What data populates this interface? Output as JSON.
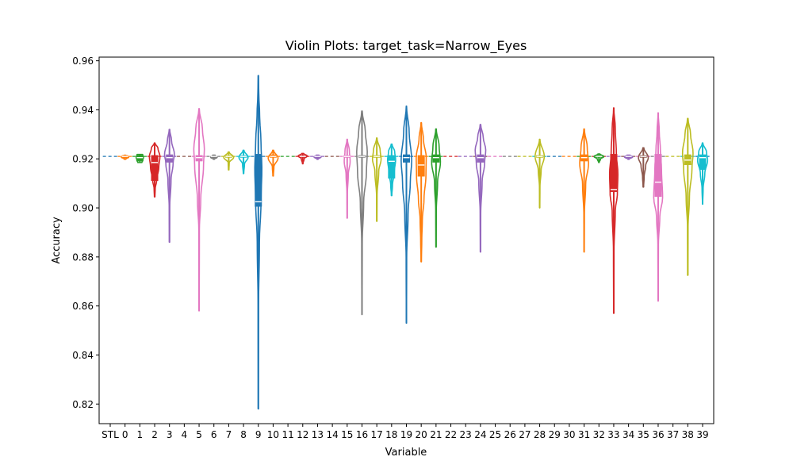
{
  "chart_data": {
    "type": "violin",
    "title": "Violin Plots: target_task=Narrow_Eyes",
    "xlabel": "Variable",
    "ylabel": "Accuracy",
    "ylim": [
      0.812,
      0.9615
    ],
    "yticks": [
      0.82,
      0.84,
      0.86,
      0.88,
      0.9,
      0.92,
      0.94,
      0.96
    ],
    "grid": false,
    "categories": [
      "STL",
      "0",
      "1",
      "2",
      "3",
      "4",
      "5",
      "6",
      "7",
      "8",
      "9",
      "10",
      "11",
      "12",
      "13",
      "14",
      "15",
      "16",
      "17",
      "18",
      "19",
      "20",
      "21",
      "22",
      "23",
      "24",
      "25",
      "26",
      "27",
      "28",
      "29",
      "30",
      "31",
      "32",
      "33",
      "34",
      "35",
      "36",
      "37",
      "38",
      "39"
    ],
    "colors": [
      "#1f77b4",
      "#ff7f0e",
      "#2ca02c",
      "#d62728",
      "#9467bd",
      "#8c564b",
      "#e377c2",
      "#7f7f7f",
      "#bcbd22",
      "#17becf"
    ],
    "series": [
      {
        "cat": "STL",
        "ci": 0,
        "min": 0.921,
        "max": 0.921,
        "q1": 0.921,
        "med": 0.921,
        "q3": 0.921,
        "w": 0
      },
      {
        "cat": "0",
        "ci": 1,
        "min": 0.9198,
        "max": 0.9215,
        "q1": 0.9205,
        "med": 0.921,
        "q3": 0.9212,
        "w": 0.55,
        "s": [
          [
            0,
            0.15
          ],
          [
            0.15,
            0.3
          ],
          [
            0.5,
            0.9
          ],
          [
            0.8,
            0.7
          ],
          [
            1,
            0.1
          ]
        ]
      },
      {
        "cat": "1",
        "ci": 2,
        "min": 0.9185,
        "max": 0.9218,
        "q1": 0.919,
        "med": 0.9205,
        "q3": 0.9215,
        "w": 0.55,
        "s": [
          [
            0,
            0.5
          ],
          [
            0.3,
            0.7
          ],
          [
            0.6,
            0.9
          ],
          [
            1,
            0.7
          ]
        ]
      },
      {
        "cat": "2",
        "ci": 3,
        "min": 0.9045,
        "max": 0.9265,
        "q1": 0.911,
        "med": 0.9185,
        "q3": 0.9215,
        "w": 0.75,
        "s": [
          [
            0,
            0.05
          ],
          [
            0.15,
            0.1
          ],
          [
            0.3,
            0.35
          ],
          [
            0.55,
            0.75
          ],
          [
            0.75,
            0.95
          ],
          [
            0.9,
            0.6
          ],
          [
            1,
            0.05
          ]
        ]
      },
      {
        "cat": "3",
        "ci": 4,
        "min": 0.886,
        "max": 0.932,
        "q1": 0.9185,
        "med": 0.9205,
        "q3": 0.9218,
        "w": 0.7,
        "s": [
          [
            0,
            0.02
          ],
          [
            0.3,
            0.05
          ],
          [
            0.55,
            0.3
          ],
          [
            0.7,
            0.7
          ],
          [
            0.78,
            0.95
          ],
          [
            0.9,
            0.4
          ],
          [
            1,
            0.05
          ]
        ]
      },
      {
        "cat": "4",
        "ci": 5,
        "min": 0.921,
        "max": 0.921,
        "q1": 0.921,
        "med": 0.921,
        "q3": 0.921,
        "w": 0
      },
      {
        "cat": "5",
        "ci": 6,
        "min": 0.858,
        "max": 0.9405,
        "q1": 0.919,
        "med": 0.9205,
        "q3": 0.9215,
        "w": 0.75,
        "s": [
          [
            0,
            0.02
          ],
          [
            0.4,
            0.05
          ],
          [
            0.55,
            0.3
          ],
          [
            0.72,
            0.8
          ],
          [
            0.8,
            0.95
          ],
          [
            0.9,
            0.6
          ],
          [
            1,
            0.03
          ]
        ]
      },
      {
        "cat": "6",
        "ci": 7,
        "min": 0.9198,
        "max": 0.9215,
        "q1": 0.9205,
        "med": 0.921,
        "q3": 0.9212,
        "w": 0.55,
        "s": [
          [
            0,
            0.1
          ],
          [
            0.5,
            0.8
          ],
          [
            1,
            0.3
          ]
        ]
      },
      {
        "cat": "7",
        "ci": 8,
        "min": 0.9155,
        "max": 0.9228,
        "q1": 0.9205,
        "med": 0.921,
        "q3": 0.9215,
        "w": 0.7,
        "s": [
          [
            0,
            0.05
          ],
          [
            0.4,
            0.1
          ],
          [
            0.7,
            0.95
          ],
          [
            1,
            0.1
          ]
        ]
      },
      {
        "cat": "8",
        "ci": 9,
        "min": 0.914,
        "max": 0.9235,
        "q1": 0.9205,
        "med": 0.921,
        "q3": 0.9215,
        "w": 0.65,
        "s": [
          [
            0,
            0.05
          ],
          [
            0.4,
            0.2
          ],
          [
            0.7,
            0.95
          ],
          [
            1,
            0.1
          ]
        ]
      },
      {
        "cat": "9",
        "ci": 0,
        "min": 0.818,
        "max": 0.954,
        "q1": 0.9005,
        "med": 0.9025,
        "q3": 0.922,
        "w": 0.6,
        "s": [
          [
            0,
            0.02
          ],
          [
            0.3,
            0.05
          ],
          [
            0.5,
            0.25
          ],
          [
            0.62,
            0.6
          ],
          [
            0.72,
            0.8
          ],
          [
            0.8,
            0.6
          ],
          [
            0.88,
            0.3
          ],
          [
            0.95,
            0.1
          ],
          [
            1,
            0.02
          ]
        ]
      },
      {
        "cat": "10",
        "ci": 1,
        "min": 0.913,
        "max": 0.9235,
        "q1": 0.9205,
        "med": 0.921,
        "q3": 0.9218,
        "w": 0.7,
        "s": [
          [
            0,
            0.05
          ],
          [
            0.35,
            0.15
          ],
          [
            0.7,
            0.95
          ],
          [
            1,
            0.1
          ]
        ]
      },
      {
        "cat": "11",
        "ci": 2,
        "min": 0.921,
        "max": 0.921,
        "q1": 0.921,
        "med": 0.921,
        "q3": 0.921,
        "w": 0
      },
      {
        "cat": "12",
        "ci": 3,
        "min": 0.918,
        "max": 0.9222,
        "q1": 0.9205,
        "med": 0.921,
        "q3": 0.9215,
        "w": 0.65,
        "s": [
          [
            0,
            0.05
          ],
          [
            0.5,
            0.3
          ],
          [
            0.75,
            0.95
          ],
          [
            1,
            0.2
          ]
        ]
      },
      {
        "cat": "13",
        "ci": 4,
        "min": 0.9198,
        "max": 0.9215,
        "q1": 0.9205,
        "med": 0.921,
        "q3": 0.9212,
        "w": 0.6,
        "s": [
          [
            0,
            0.1
          ],
          [
            0.6,
            0.8
          ],
          [
            1,
            0.3
          ]
        ]
      },
      {
        "cat": "14",
        "ci": 5,
        "min": 0.921,
        "max": 0.921,
        "q1": 0.921,
        "med": 0.921,
        "q3": 0.921,
        "w": 0
      },
      {
        "cat": "15",
        "ci": 6,
        "min": 0.8958,
        "max": 0.928,
        "q1": 0.9205,
        "med": 0.921,
        "q3": 0.9215,
        "w": 0.5,
        "s": [
          [
            0,
            0.02
          ],
          [
            0.3,
            0.05
          ],
          [
            0.55,
            0.3
          ],
          [
            0.72,
            0.8
          ],
          [
            0.85,
            0.6
          ],
          [
            1,
            0.05
          ]
        ]
      },
      {
        "cat": "16",
        "ci": 7,
        "min": 0.8565,
        "max": 0.9395,
        "q1": 0.9205,
        "med": 0.921,
        "q3": 0.9215,
        "w": 0.75,
        "s": [
          [
            0,
            0.02
          ],
          [
            0.35,
            0.05
          ],
          [
            0.55,
            0.3
          ],
          [
            0.7,
            0.8
          ],
          [
            0.8,
            0.95
          ],
          [
            0.9,
            0.6
          ],
          [
            1,
            0.05
          ]
        ]
      },
      {
        "cat": "17",
        "ci": 8,
        "min": 0.8945,
        "max": 0.9285,
        "q1": 0.9205,
        "med": 0.921,
        "q3": 0.9215,
        "w": 0.65,
        "s": [
          [
            0,
            0.02
          ],
          [
            0.3,
            0.05
          ],
          [
            0.6,
            0.4
          ],
          [
            0.75,
            0.9
          ],
          [
            0.85,
            0.7
          ],
          [
            1,
            0.05
          ]
        ]
      },
      {
        "cat": "18",
        "ci": 9,
        "min": 0.905,
        "max": 0.926,
        "q1": 0.912,
        "med": 0.919,
        "q3": 0.9215,
        "w": 0.6,
        "s": [
          [
            0,
            0.05
          ],
          [
            0.2,
            0.2
          ],
          [
            0.45,
            0.6
          ],
          [
            0.7,
            0.9
          ],
          [
            0.85,
            0.7
          ],
          [
            1,
            0.1
          ]
        ]
      },
      {
        "cat": "19",
        "ci": 0,
        "min": 0.853,
        "max": 0.9415,
        "q1": 0.9185,
        "med": 0.9205,
        "q3": 0.9218,
        "w": 0.75,
        "s": [
          [
            0,
            0.02
          ],
          [
            0.3,
            0.05
          ],
          [
            0.5,
            0.3
          ],
          [
            0.65,
            0.7
          ],
          [
            0.75,
            0.95
          ],
          [
            0.88,
            0.5
          ],
          [
            1,
            0.03
          ]
        ]
      },
      {
        "cat": "20",
        "ci": 1,
        "min": 0.878,
        "max": 0.9348,
        "q1": 0.9128,
        "med": 0.9175,
        "q3": 0.9215,
        "w": 0.75,
        "s": [
          [
            0,
            0.02
          ],
          [
            0.15,
            0.1
          ],
          [
            0.3,
            0.2
          ],
          [
            0.45,
            0.5
          ],
          [
            0.62,
            0.85
          ],
          [
            0.75,
            0.9
          ],
          [
            0.88,
            0.4
          ],
          [
            1,
            0.03
          ]
        ]
      },
      {
        "cat": "21",
        "ci": 2,
        "min": 0.884,
        "max": 0.9322,
        "q1": 0.9185,
        "med": 0.9205,
        "q3": 0.9218,
        "w": 0.7,
        "s": [
          [
            0,
            0.02
          ],
          [
            0.3,
            0.05
          ],
          [
            0.55,
            0.3
          ],
          [
            0.72,
            0.85
          ],
          [
            0.85,
            0.6
          ],
          [
            1,
            0.05
          ]
        ]
      },
      {
        "cat": "22",
        "ci": 3,
        "min": 0.921,
        "max": 0.921,
        "q1": 0.921,
        "med": 0.921,
        "q3": 0.921,
        "w": 0
      },
      {
        "cat": "23",
        "ci": 4,
        "min": 0.921,
        "max": 0.921,
        "q1": 0.921,
        "med": 0.921,
        "q3": 0.921,
        "w": 0
      },
      {
        "cat": "24",
        "ci": 4,
        "min": 0.882,
        "max": 0.934,
        "q1": 0.9185,
        "med": 0.9205,
        "q3": 0.9218,
        "w": 0.75,
        "s": [
          [
            0,
            0.02
          ],
          [
            0.3,
            0.05
          ],
          [
            0.55,
            0.3
          ],
          [
            0.7,
            0.75
          ],
          [
            0.8,
            0.95
          ],
          [
            0.9,
            0.5
          ],
          [
            1,
            0.05
          ]
        ]
      },
      {
        "cat": "25",
        "ci": 5,
        "min": 0.921,
        "max": 0.921,
        "q1": 0.921,
        "med": 0.921,
        "q3": 0.921,
        "w": 0
      },
      {
        "cat": "26",
        "ci": 6,
        "min": 0.921,
        "max": 0.921,
        "q1": 0.921,
        "med": 0.921,
        "q3": 0.921,
        "w": 0
      },
      {
        "cat": "27",
        "ci": 7,
        "min": 0.921,
        "max": 0.921,
        "q1": 0.921,
        "med": 0.921,
        "q3": 0.921,
        "w": 0
      },
      {
        "cat": "28",
        "ci": 8,
        "min": 0.9,
        "max": 0.928,
        "q1": 0.9205,
        "med": 0.921,
        "q3": 0.9215,
        "w": 0.65,
        "s": [
          [
            0,
            0.02
          ],
          [
            0.3,
            0.05
          ],
          [
            0.55,
            0.3
          ],
          [
            0.75,
            0.95
          ],
          [
            1,
            0.05
          ]
        ]
      },
      {
        "cat": "29",
        "ci": 9,
        "min": 0.921,
        "max": 0.921,
        "q1": 0.921,
        "med": 0.921,
        "q3": 0.921,
        "w": 0
      },
      {
        "cat": "30",
        "ci": 0,
        "min": 0.921,
        "max": 0.921,
        "q1": 0.921,
        "med": 0.921,
        "q3": 0.921,
        "w": 0
      },
      {
        "cat": "31",
        "ci": 1,
        "min": 0.882,
        "max": 0.9322,
        "q1": 0.919,
        "med": 0.9205,
        "q3": 0.9218,
        "w": 0.7,
        "s": [
          [
            0,
            0.02
          ],
          [
            0.3,
            0.05
          ],
          [
            0.55,
            0.3
          ],
          [
            0.72,
            0.85
          ],
          [
            0.85,
            0.6
          ],
          [
            1,
            0.05
          ]
        ]
      },
      {
        "cat": "32",
        "ci": 2,
        "min": 0.9185,
        "max": 0.922,
        "q1": 0.9205,
        "med": 0.921,
        "q3": 0.9215,
        "w": 0.7,
        "s": [
          [
            0,
            0.05
          ],
          [
            0.4,
            0.3
          ],
          [
            0.7,
            0.95
          ],
          [
            1,
            0.2
          ]
        ]
      },
      {
        "cat": "33",
        "ci": 3,
        "min": 0.857,
        "max": 0.9408,
        "q1": 0.9065,
        "med": 0.9075,
        "q3": 0.922,
        "w": 0.7,
        "s": [
          [
            0,
            0.02
          ],
          [
            0.3,
            0.05
          ],
          [
            0.5,
            0.3
          ],
          [
            0.58,
            0.7
          ],
          [
            0.68,
            0.8
          ],
          [
            0.78,
            0.5
          ],
          [
            0.9,
            0.3
          ],
          [
            1,
            0.02
          ]
        ]
      },
      {
        "cat": "34",
        "ci": 4,
        "min": 0.9198,
        "max": 0.9215,
        "q1": 0.9205,
        "med": 0.921,
        "q3": 0.9212,
        "w": 0.7,
        "s": [
          [
            0,
            0.1
          ],
          [
            0.6,
            0.8
          ],
          [
            1,
            0.3
          ]
        ]
      },
      {
        "cat": "35",
        "ci": 5,
        "min": 0.9085,
        "max": 0.9245,
        "q1": 0.9205,
        "med": 0.921,
        "q3": 0.9215,
        "w": 0.7,
        "s": [
          [
            0,
            0.05
          ],
          [
            0.25,
            0.15
          ],
          [
            0.55,
            0.45
          ],
          [
            0.75,
            0.95
          ],
          [
            1,
            0.1
          ]
        ]
      },
      {
        "cat": "36",
        "ci": 6,
        "min": 0.862,
        "max": 0.9388,
        "q1": 0.9045,
        "med": 0.9105,
        "q3": 0.922,
        "w": 0.75,
        "s": [
          [
            0,
            0.02
          ],
          [
            0.3,
            0.05
          ],
          [
            0.45,
            0.3
          ],
          [
            0.55,
            0.8
          ],
          [
            0.7,
            0.6
          ],
          [
            0.8,
            0.4
          ],
          [
            0.9,
            0.2
          ],
          [
            1,
            0.02
          ]
        ]
      },
      {
        "cat": "37",
        "ci": 7,
        "min": 0.921,
        "max": 0.921,
        "q1": 0.921,
        "med": 0.921,
        "q3": 0.921,
        "w": 0
      },
      {
        "cat": "38",
        "ci": 8,
        "min": 0.8725,
        "max": 0.9365,
        "q1": 0.9175,
        "med": 0.9195,
        "q3": 0.9218,
        "w": 0.75,
        "s": [
          [
            0,
            0.02
          ],
          [
            0.3,
            0.05
          ],
          [
            0.5,
            0.3
          ],
          [
            0.68,
            0.75
          ],
          [
            0.78,
            0.95
          ],
          [
            0.9,
            0.5
          ],
          [
            1,
            0.05
          ]
        ]
      },
      {
        "cat": "39",
        "ci": 9,
        "min": 0.9015,
        "max": 0.9265,
        "q1": 0.9155,
        "med": 0.9205,
        "q3": 0.9218,
        "w": 0.75,
        "s": [
          [
            0,
            0.02
          ],
          [
            0.25,
            0.1
          ],
          [
            0.5,
            0.4
          ],
          [
            0.72,
            0.9
          ],
          [
            0.85,
            0.7
          ],
          [
            1,
            0.05
          ]
        ]
      }
    ]
  }
}
